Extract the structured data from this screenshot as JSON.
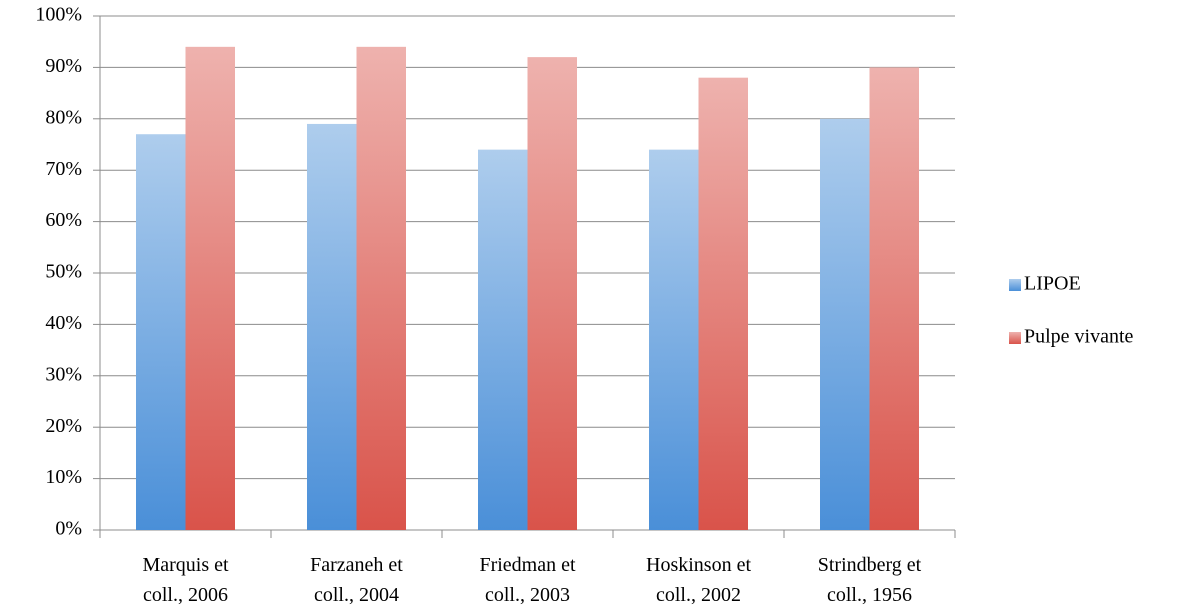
{
  "chart_data": {
    "type": "bar",
    "categories": [
      "Marquis et coll., 2006",
      "Farzaneh et coll., 2004",
      "Friedman et coll., 2003",
      "Hoskinson et coll., 2002",
      "Strindberg et coll., 1956"
    ],
    "series": [
      {
        "name": "LIPOE",
        "color": "#4a8fd8",
        "values": [
          77,
          79,
          74,
          74,
          80
        ]
      },
      {
        "name": "Pulpe vivante",
        "color": "#d9534a",
        "values": [
          94,
          94,
          92,
          88,
          90
        ]
      }
    ],
    "ylim": [
      0,
      100
    ],
    "yticks": [
      {
        "value": 0,
        "label": "0%"
      },
      {
        "value": 10,
        "label": "10%"
      },
      {
        "value": 20,
        "label": "20%"
      },
      {
        "value": 30,
        "label": "30%"
      },
      {
        "value": 40,
        "label": "40%"
      },
      {
        "value": 50,
        "label": "50%"
      },
      {
        "value": 60,
        "label": "60%"
      },
      {
        "value": 70,
        "label": "70%"
      },
      {
        "value": 80,
        "label": "80%"
      },
      {
        "value": 90,
        "label": "90%"
      },
      {
        "value": 100,
        "label": "100%"
      }
    ],
    "grid": true,
    "legend": "right"
  }
}
